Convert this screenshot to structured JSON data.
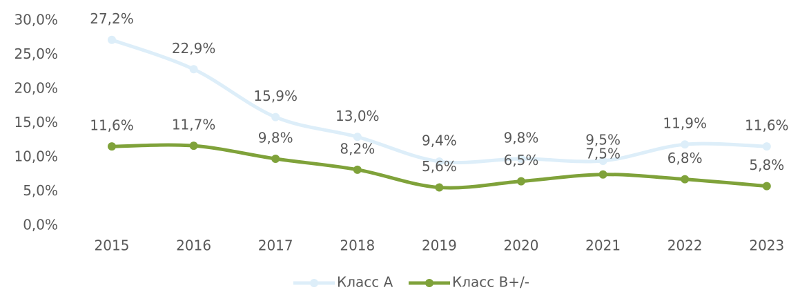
{
  "chart_data": {
    "type": "line",
    "categories": [
      "2015",
      "2016",
      "2017",
      "2018",
      "2019",
      "2020",
      "2021",
      "2022",
      "2023"
    ],
    "series": [
      {
        "name": "Класс А",
        "color": "#ddeef9",
        "values": [
          27.2,
          22.9,
          15.9,
          13.0,
          9.4,
          9.8,
          9.5,
          11.9,
          11.6
        ],
        "value_labels": [
          "27,2%",
          "22,9%",
          "15,9%",
          "13,0%",
          "9,4%",
          "9,8%",
          "9,5%",
          "11,9%",
          "11,6%"
        ]
      },
      {
        "name": "Класс В+/-",
        "color": "#7fa23a",
        "values": [
          11.6,
          11.7,
          9.8,
          8.2,
          5.6,
          6.5,
          7.5,
          6.8,
          5.8
        ],
        "value_labels": [
          "11,6%",
          "11,7%",
          "9,8%",
          "8,2%",
          "5,6%",
          "6,5%",
          "7,5%",
          "6,8%",
          "5,8%"
        ]
      }
    ],
    "ylim": [
      0,
      30
    ],
    "yticks": [
      {
        "value": 0,
        "label": "0,0%"
      },
      {
        "value": 5,
        "label": "5,0%"
      },
      {
        "value": 10,
        "label": "10,0%"
      },
      {
        "value": 15,
        "label": "15,0%"
      },
      {
        "value": 20,
        "label": "20,0%"
      },
      {
        "value": 25,
        "label": "25,0%"
      },
      {
        "value": 30,
        "label": "30,0%"
      }
    ],
    "grid": false,
    "legend": "bottom",
    "smooth": true
  }
}
